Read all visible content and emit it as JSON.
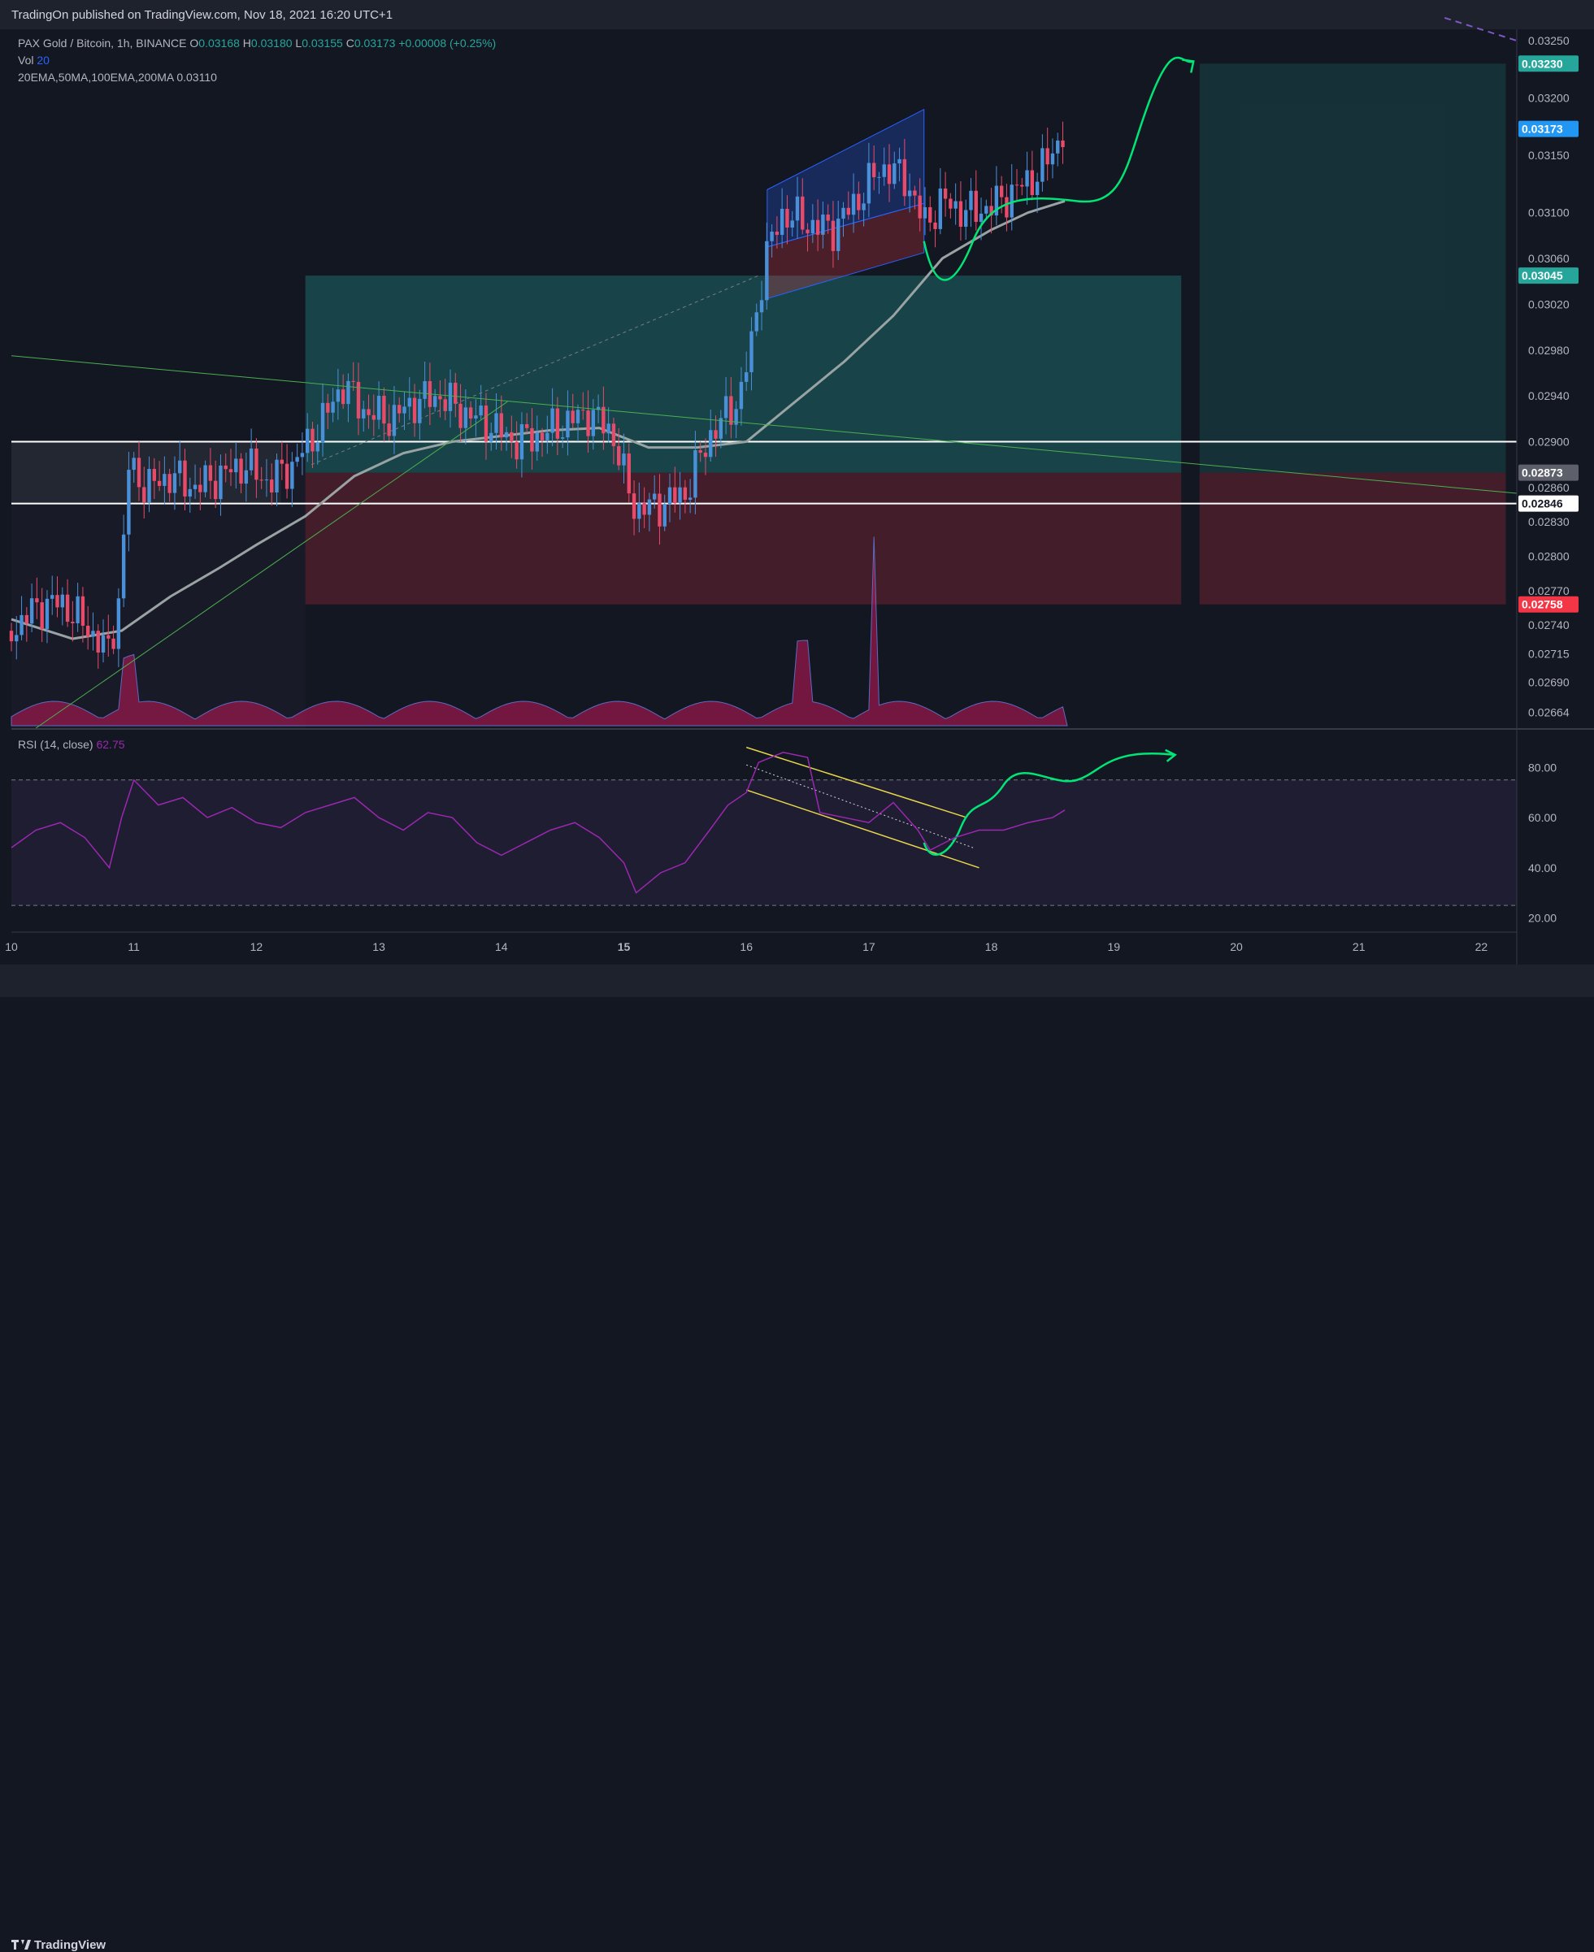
{
  "header": {
    "published": "TradingOn published on TradingView.com, Nov 18, 2021 16:20 UTC+1"
  },
  "legend": {
    "symbol": "PAX Gold / Bitcoin, 1h, BINANCE",
    "o_label": "O",
    "o": "0.03168",
    "h_label": "H",
    "h": "0.03180",
    "l_label": "L",
    "l": "0.03155",
    "c_label": "C",
    "c": "0.03173",
    "change": "+0.00008 (+0.25%)",
    "vol_label": "Vol",
    "vol": "20",
    "ma_label": "20EMA,50MA,100EMA,200MA",
    "ma_value": "0.03110",
    "rsi_label": "RSI (14, close)",
    "rsi_value": "62.75"
  },
  "footer": {
    "brand": "TradingView"
  },
  "colors": {
    "bg": "#131722",
    "up": "#4a90d9",
    "down": "#e84a6a",
    "ema": "#9aa3a3",
    "green_drawing": "#00e676",
    "target": "#26a69a",
    "stop": "#f23645",
    "rsi": "#9c27b0",
    "channel_yellow": "#e8d64a"
  },
  "chart_data": [
    {
      "type": "candlestick",
      "title": "PAX Gold / Bitcoin, 1h, BINANCE",
      "x_tick_labels": [
        "10",
        "11",
        "12",
        "13",
        "14",
        "15",
        "16",
        "17",
        "18",
        "19",
        "20",
        "21",
        "22"
      ],
      "y_tick_labels": [
        "0.03250",
        "0.03200",
        "0.03150",
        "0.03100",
        "0.03060",
        "0.03020",
        "0.02980",
        "0.02940",
        "0.02900",
        "0.02860",
        "0.02830",
        "0.02800",
        "0.02770",
        "0.02740",
        "0.02715",
        "0.02690",
        "0.02664"
      ],
      "ylim": [
        0.0265,
        0.0326
      ],
      "price_badges": [
        {
          "label": "0.03230",
          "kind": "target"
        },
        {
          "label": "0.03173",
          "kind": "last"
        },
        {
          "label": "0.03045",
          "kind": "target"
        },
        {
          "label": "0.02873",
          "kind": "neutral"
        },
        {
          "label": "0.02846",
          "kind": "white"
        },
        {
          "label": "0.02758",
          "kind": "stop"
        }
      ],
      "horizontal_levels": [
        0.029,
        0.02846
      ],
      "positions": [
        {
          "entry": 0.02873,
          "target": 0.03045,
          "stop": 0.02758,
          "from_day": 12.4,
          "to_day": 19.55
        },
        {
          "entry": 0.02873,
          "target": 0.0323,
          "stop": 0.02758,
          "from_day": 19.7,
          "to_day": 22.2
        }
      ],
      "close_path": [
        [
          10.0,
          0.02735
        ],
        [
          10.2,
          0.02755
        ],
        [
          10.4,
          0.0276
        ],
        [
          10.6,
          0.0274
        ],
        [
          10.8,
          0.02715
        ],
        [
          10.9,
          0.0278
        ],
        [
          10.95,
          0.0288
        ],
        [
          11.1,
          0.0286
        ],
        [
          11.3,
          0.0287
        ],
        [
          11.5,
          0.0286
        ],
        [
          11.7,
          0.0287
        ],
        [
          11.9,
          0.0288
        ],
        [
          12.1,
          0.02865
        ],
        [
          12.3,
          0.0288
        ],
        [
          12.5,
          0.0291
        ],
        [
          12.6,
          0.0293
        ],
        [
          12.7,
          0.0295
        ],
        [
          12.9,
          0.02925
        ],
        [
          13.1,
          0.0292
        ],
        [
          13.3,
          0.02935
        ],
        [
          13.5,
          0.0294
        ],
        [
          13.7,
          0.02925
        ],
        [
          13.9,
          0.02915
        ],
        [
          14.1,
          0.029
        ],
        [
          14.3,
          0.02905
        ],
        [
          14.5,
          0.02915
        ],
        [
          14.7,
          0.02925
        ],
        [
          14.9,
          0.0291
        ],
        [
          15.0,
          0.0287
        ],
        [
          15.1,
          0.0284
        ],
        [
          15.3,
          0.02845
        ],
        [
          15.5,
          0.02855
        ],
        [
          15.7,
          0.02905
        ],
        [
          15.85,
          0.02925
        ],
        [
          15.95,
          0.0294
        ],
        [
          16.05,
          0.0299
        ],
        [
          16.15,
          0.0306
        ],
        [
          16.3,
          0.031
        ],
        [
          16.5,
          0.0309
        ],
        [
          16.7,
          0.03085
        ],
        [
          16.9,
          0.0311
        ],
        [
          17.1,
          0.0314
        ],
        [
          17.3,
          0.0313
        ],
        [
          17.45,
          0.0309
        ],
        [
          17.6,
          0.0311
        ],
        [
          17.8,
          0.031
        ],
        [
          18.0,
          0.03105
        ],
        [
          18.2,
          0.0312
        ],
        [
          18.4,
          0.03135
        ],
        [
          18.6,
          0.03173
        ]
      ],
      "series": [
        {
          "values": [
            [
              10.0,
              0.02745
            ],
            [
              10.5,
              0.02728
            ],
            [
              10.9,
              0.02735
            ],
            [
              11.3,
              0.02765
            ],
            [
              11.7,
              0.0279
            ],
            [
              12.0,
              0.0281
            ],
            [
              12.4,
              0.02835
            ],
            [
              12.8,
              0.0287
            ],
            [
              13.2,
              0.0289
            ],
            [
              13.6,
              0.029
            ],
            [
              14.0,
              0.02905
            ],
            [
              14.4,
              0.0291
            ],
            [
              14.8,
              0.02912
            ],
            [
              15.2,
              0.02895
            ],
            [
              15.6,
              0.02895
            ],
            [
              16.0,
              0.029
            ],
            [
              16.4,
              0.02935
            ],
            [
              16.8,
              0.0297
            ],
            [
              17.2,
              0.0301
            ],
            [
              17.6,
              0.0306
            ],
            [
              18.0,
              0.03085
            ],
            [
              18.3,
              0.031
            ],
            [
              18.6,
              0.0311
            ]
          ]
        }
      ]
    },
    {
      "type": "line",
      "title": "RSI (14, close)",
      "y_tick_labels": [
        "80.00",
        "60.00",
        "40.00",
        "20.00"
      ],
      "ylim": [
        15,
        95
      ],
      "bands": [
        75,
        25
      ],
      "series": [
        {
          "values": [
            [
              10.0,
              48
            ],
            [
              10.2,
              55
            ],
            [
              10.4,
              58
            ],
            [
              10.6,
              52
            ],
            [
              10.8,
              40
            ],
            [
              10.9,
              60
            ],
            [
              11.0,
              75
            ],
            [
              11.2,
              65
            ],
            [
              11.4,
              68
            ],
            [
              11.6,
              60
            ],
            [
              11.8,
              64
            ],
            [
              12.0,
              58
            ],
            [
              12.2,
              56
            ],
            [
              12.4,
              62
            ],
            [
              12.6,
              65
            ],
            [
              12.8,
              68
            ],
            [
              13.0,
              60
            ],
            [
              13.2,
              55
            ],
            [
              13.4,
              62
            ],
            [
              13.6,
              60
            ],
            [
              13.8,
              50
            ],
            [
              14.0,
              45
            ],
            [
              14.2,
              50
            ],
            [
              14.4,
              55
            ],
            [
              14.6,
              58
            ],
            [
              14.8,
              52
            ],
            [
              15.0,
              42
            ],
            [
              15.1,
              30
            ],
            [
              15.3,
              38
            ],
            [
              15.5,
              42
            ],
            [
              15.7,
              55
            ],
            [
              15.85,
              65
            ],
            [
              16.0,
              70
            ],
            [
              16.1,
              82
            ],
            [
              16.3,
              86
            ],
            [
              16.5,
              84
            ],
            [
              16.6,
              62
            ],
            [
              16.8,
              60
            ],
            [
              17.0,
              58
            ],
            [
              17.2,
              66
            ],
            [
              17.4,
              55
            ],
            [
              17.5,
              47
            ],
            [
              17.7,
              52
            ],
            [
              17.9,
              55
            ],
            [
              18.1,
              55
            ],
            [
              18.3,
              58
            ],
            [
              18.5,
              60
            ],
            [
              18.6,
              63
            ]
          ]
        }
      ]
    }
  ]
}
